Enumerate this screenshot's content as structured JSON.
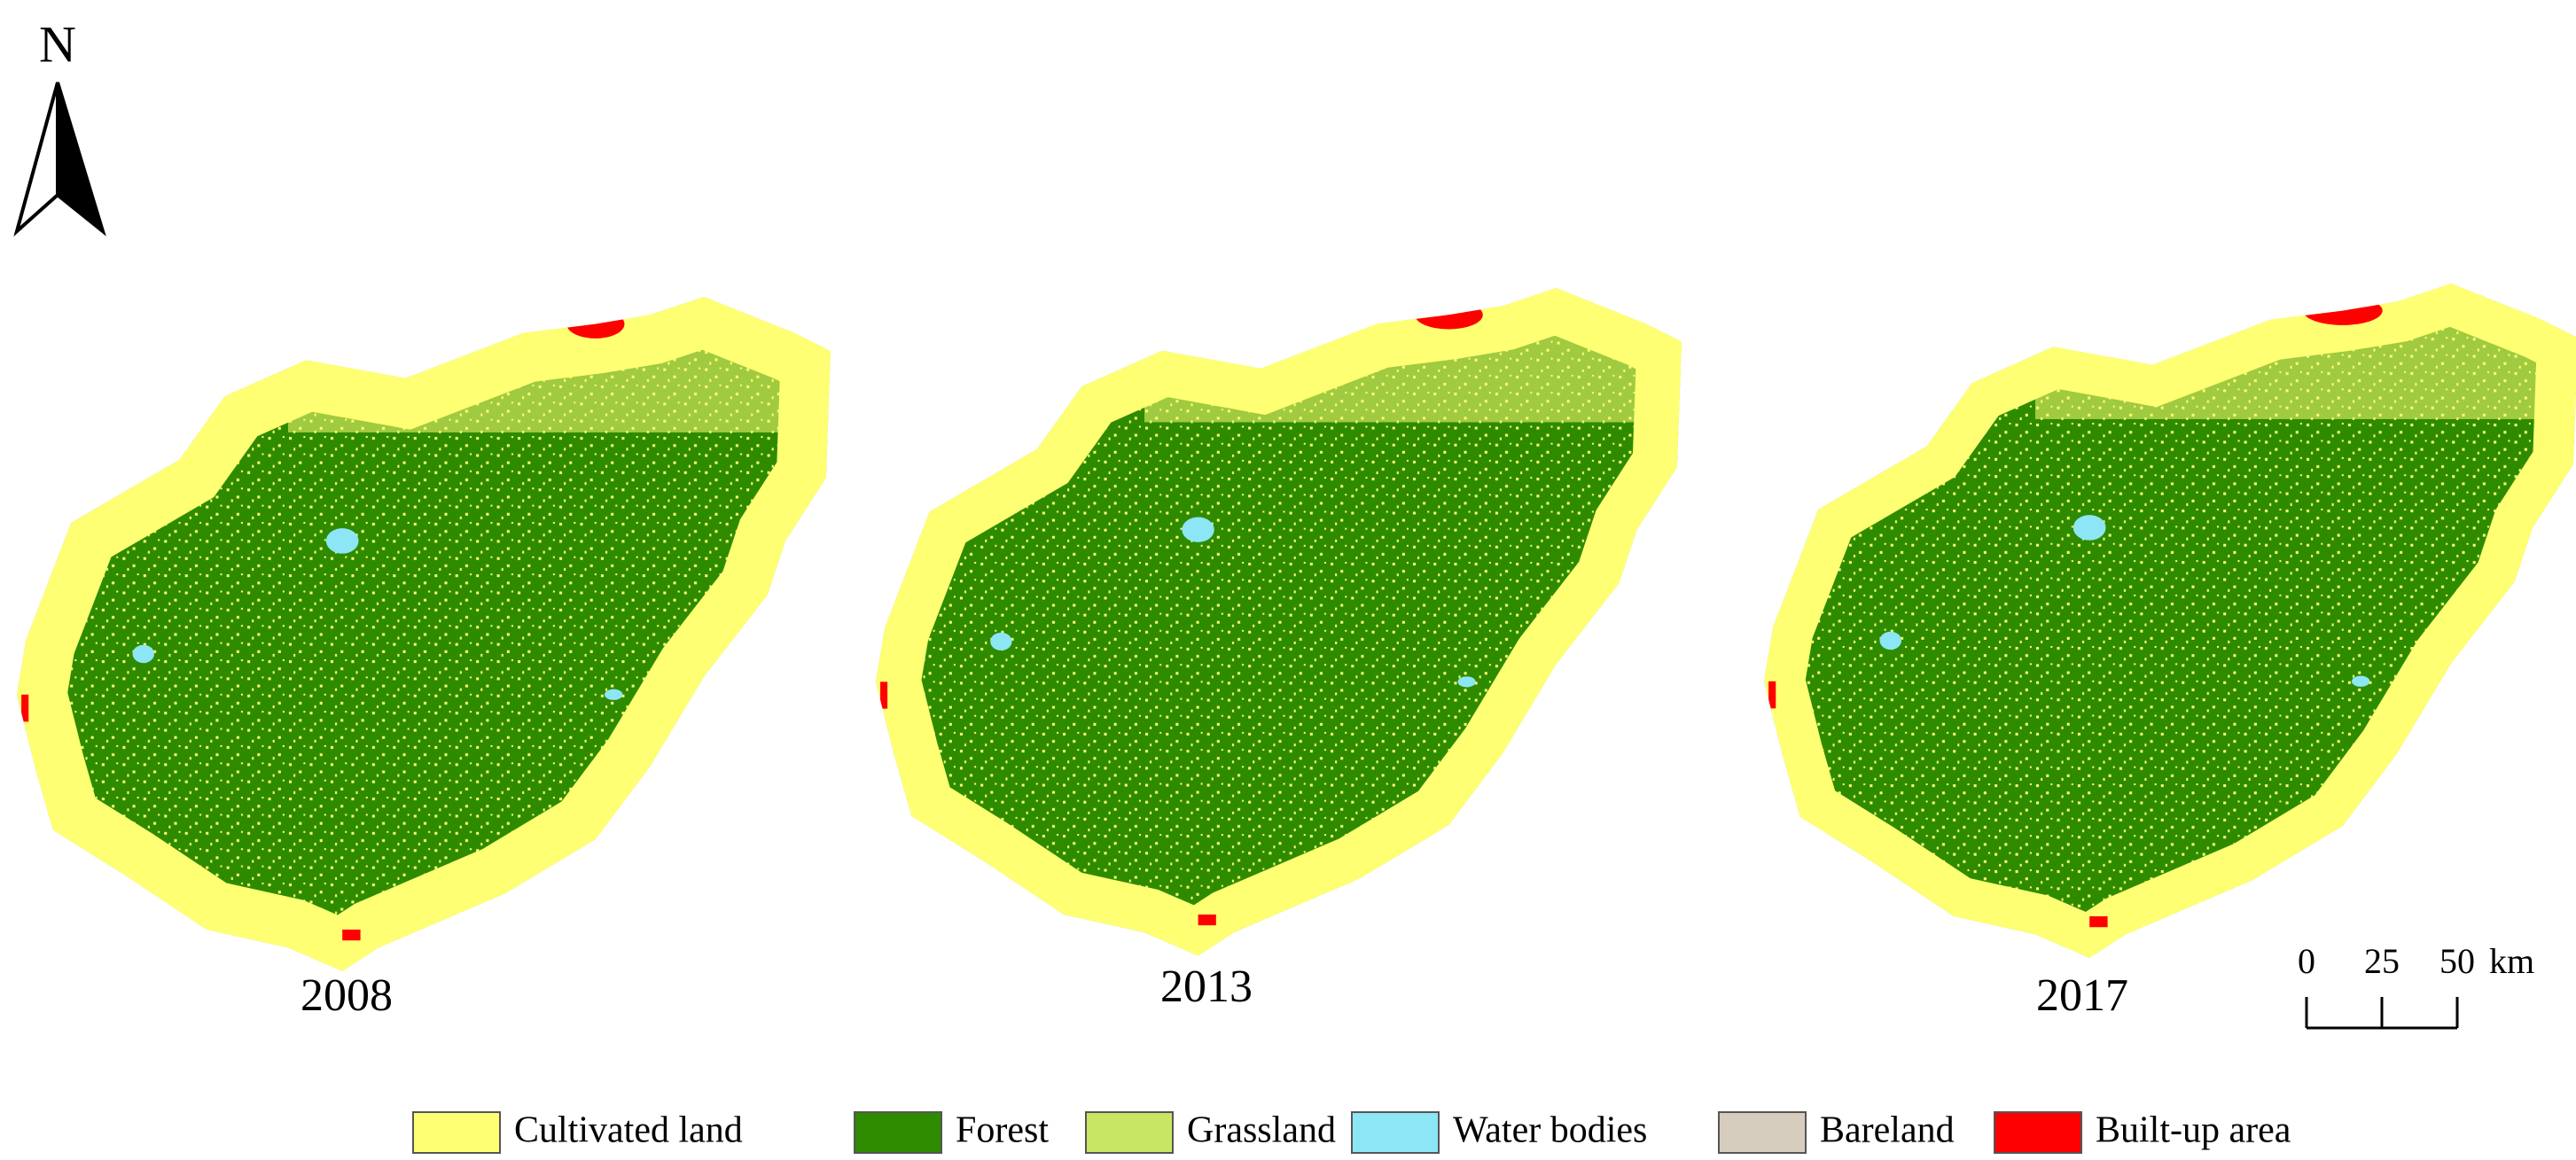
{
  "north_arrow": {
    "label": "N"
  },
  "maps": [
    {
      "year": "2008"
    },
    {
      "year": "2013"
    },
    {
      "year": "2017"
    }
  ],
  "scale_bar": {
    "ticks": [
      0,
      25,
      50
    ],
    "unit": "km"
  },
  "legend": [
    {
      "name": "Cultivated land",
      "color": "#ffff73"
    },
    {
      "name": "Forest",
      "color": "#2e8b00"
    },
    {
      "name": "Grassland",
      "color": "#c8e664"
    },
    {
      "name": "Water bodies",
      "color": "#8ce6f5"
    },
    {
      "name": "Bareland",
      "color": "#d7cdbe"
    },
    {
      "name": "Built-up area",
      "color": "#ff0000"
    }
  ]
}
